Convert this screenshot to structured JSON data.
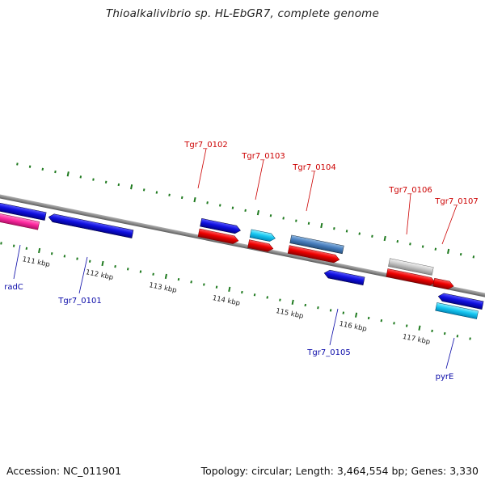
{
  "title": "Thioalkalivibrio sp. HL-EbGR7, complete genome",
  "footer": {
    "accession": "Accession: NC_011901",
    "summary": "Topology: circular; Length: 3,464,554 bp; Genes: 3,330"
  },
  "colors": {
    "backbone": "#8a8a8a",
    "tick": "#1f7a1f",
    "label_forward": "#cc0000",
    "label_reverse": "#0a0aa8"
  },
  "ticks": [
    "111 kbp",
    "112 kbp",
    "113 kbp",
    "114 kbp",
    "115 kbp",
    "116 kbp",
    "117 kbp"
  ],
  "gene_labels": {
    "radC": "radC",
    "tgr7_0101": "Tgr7_0101",
    "tgr7_0102": "Tgr7_0102",
    "tgr7_0103": "Tgr7_0103",
    "tgr7_0104": "Tgr7_0104",
    "tgr7_0105": "Tgr7_0105",
    "tgr7_0106": "Tgr7_0106",
    "tgr7_0107": "Tgr7_0107",
    "pyrE": "pyrE"
  }
}
